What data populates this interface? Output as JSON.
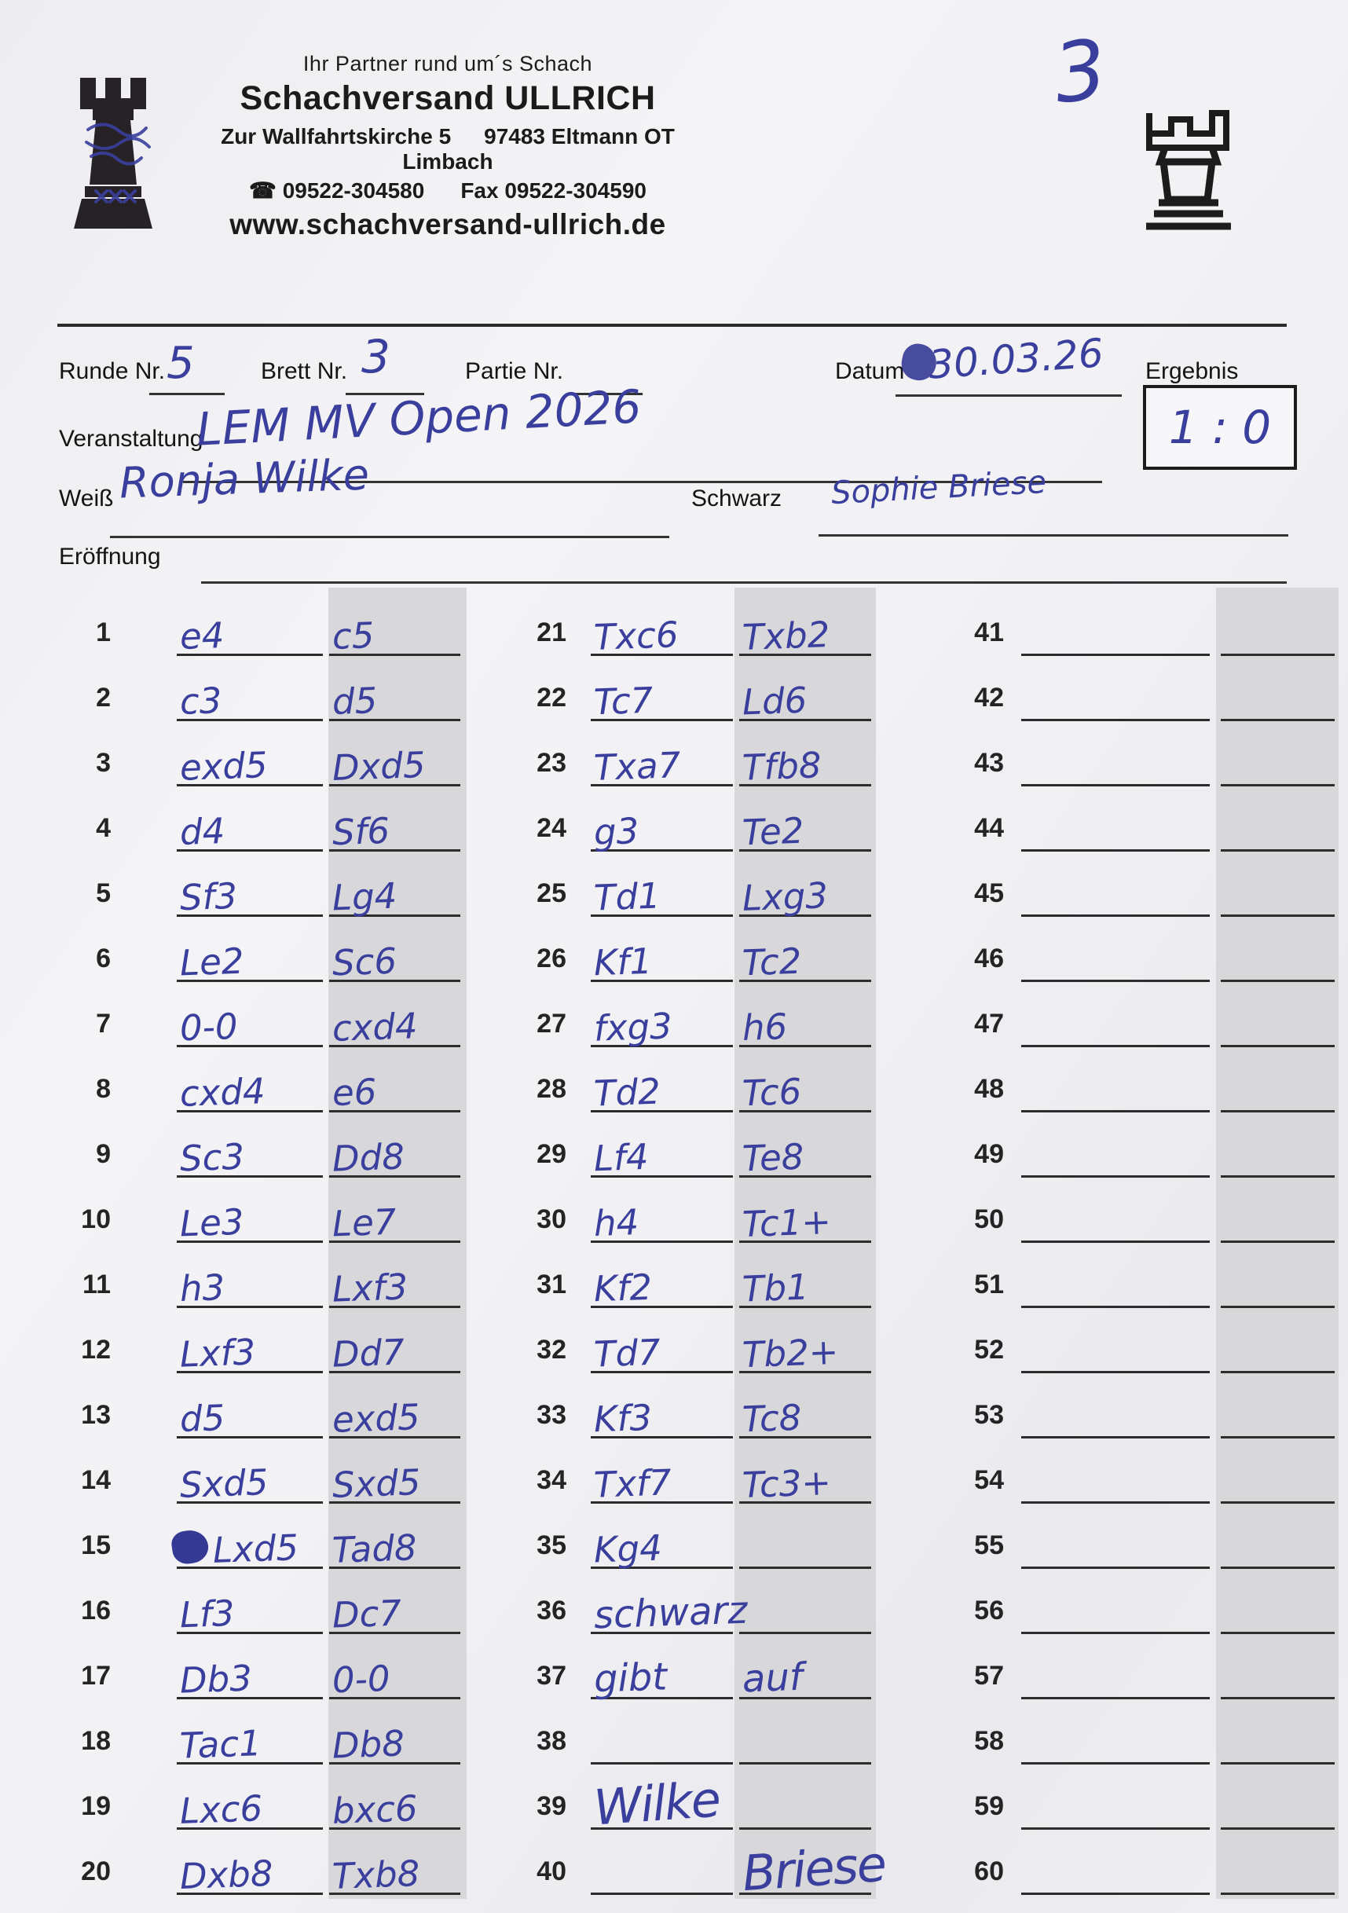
{
  "page": {
    "handwritten_page_number": "3"
  },
  "header": {
    "tagline": "Ihr Partner rund um´s Schach",
    "company": "Schachversand ULLRICH",
    "address_street": "Zur Wallfahrtskirche 5",
    "address_city": "97483 Eltmann OT Limbach",
    "phone_icon": "telephone-icon",
    "phone": "☎ 09522-304580",
    "fax": "Fax  09522-304590",
    "website": "www.schachversand-ullrich.de"
  },
  "meta": {
    "runde_label": "Runde Nr.",
    "runde_value": "5",
    "brett_label": "Brett Nr.",
    "brett_value": "3",
    "partie_label": "Partie Nr.",
    "partie_value": "",
    "datum_label": "Datum",
    "datum_value": "30.03.26",
    "ergebnis_label": "Ergebnis",
    "ergebnis_value": "1 : 0",
    "veranstaltung_label": "Veranstaltung",
    "veranstaltung_value": "LEM MV Open 2026",
    "weiss_label": "Weiß",
    "weiss_value": "Ronja Wilke",
    "schwarz_label": "Schwarz",
    "schwarz_value": "Sophie Briese",
    "eroeffnung_label": "Eröffnung",
    "eroeffnung_value": ""
  },
  "moves": [
    {
      "n": 1,
      "w": "e4",
      "b": "c5"
    },
    {
      "n": 2,
      "w": "c3",
      "b": "d5"
    },
    {
      "n": 3,
      "w": "exd5",
      "b": "Dxd5"
    },
    {
      "n": 4,
      "w": "d4",
      "b": "Sf6"
    },
    {
      "n": 5,
      "w": "Sf3",
      "b": "Lg4"
    },
    {
      "n": 6,
      "w": "Le2",
      "b": "Sc6"
    },
    {
      "n": 7,
      "w": "0-0",
      "b": "cxd4"
    },
    {
      "n": 8,
      "w": "cxd4",
      "b": "e6"
    },
    {
      "n": 9,
      "w": "Sc3",
      "b": "Dd8"
    },
    {
      "n": 10,
      "w": "Le3",
      "b": "Le7"
    },
    {
      "n": 11,
      "w": "h3",
      "b": "Lxf3"
    },
    {
      "n": 12,
      "w": "Lxf3",
      "b": "Dd7"
    },
    {
      "n": 13,
      "w": "d5",
      "b": "exd5"
    },
    {
      "n": 14,
      "w": "Sxd5",
      "b": "Sxd5"
    },
    {
      "n": 15,
      "w": "Lxd5",
      "b": "Tad8",
      "w_scribble": true
    },
    {
      "n": 16,
      "w": "Lf3",
      "b": "Dc7"
    },
    {
      "n": 17,
      "w": "Db3",
      "b": "0-0"
    },
    {
      "n": 18,
      "w": "Tac1",
      "b": "Db8"
    },
    {
      "n": 19,
      "w": "Lxc6",
      "b": "bxc6"
    },
    {
      "n": 20,
      "w": "Dxb8",
      "b": "Txb8"
    },
    {
      "n": 21,
      "w": "Txc6",
      "b": "Txb2"
    },
    {
      "n": 22,
      "w": "Tc7",
      "b": "Ld6"
    },
    {
      "n": 23,
      "w": "Txa7",
      "b": "Tfb8"
    },
    {
      "n": 24,
      "w": "g3",
      "b": "Te2"
    },
    {
      "n": 25,
      "w": "Td1",
      "b": "Lxg3"
    },
    {
      "n": 26,
      "w": "Kf1",
      "b": "Tc2"
    },
    {
      "n": 27,
      "w": "fxg3",
      "b": "h6"
    },
    {
      "n": 28,
      "w": "Td2",
      "b": "Tc6"
    },
    {
      "n": 29,
      "w": "Lf4",
      "b": "Te8"
    },
    {
      "n": 30,
      "w": "h4",
      "b": "Tc1+"
    },
    {
      "n": 31,
      "w": "Kf2",
      "b": "Tb1"
    },
    {
      "n": 32,
      "w": "Td7",
      "b": "Tb2+"
    },
    {
      "n": 33,
      "w": "Kf3",
      "b": "Tc8"
    },
    {
      "n": 34,
      "w": "Txf7",
      "b": "Tc3+"
    },
    {
      "n": 35,
      "w": "Kg4",
      "b": ""
    },
    {
      "n": 36,
      "w": "schwarz",
      "b": "",
      "w_kind": "note"
    },
    {
      "n": 37,
      "w": "gibt",
      "b": "auf",
      "w_kind": "note",
      "b_kind": "note"
    },
    {
      "n": 38,
      "w": "",
      "b": ""
    },
    {
      "n": 39,
      "w": "Wilke",
      "b": "",
      "w_kind": "sig"
    },
    {
      "n": 40,
      "w": "",
      "b": "Briese",
      "b_kind": "sig"
    },
    {
      "n": 41,
      "w": "",
      "b": ""
    },
    {
      "n": 42,
      "w": "",
      "b": ""
    },
    {
      "n": 43,
      "w": "",
      "b": ""
    },
    {
      "n": 44,
      "w": "",
      "b": ""
    },
    {
      "n": 45,
      "w": "",
      "b": ""
    },
    {
      "n": 46,
      "w": "",
      "b": ""
    },
    {
      "n": 47,
      "w": "",
      "b": ""
    },
    {
      "n": 48,
      "w": "",
      "b": ""
    },
    {
      "n": 49,
      "w": "",
      "b": ""
    },
    {
      "n": 50,
      "w": "",
      "b": ""
    },
    {
      "n": 51,
      "w": "",
      "b": ""
    },
    {
      "n": 52,
      "w": "",
      "b": ""
    },
    {
      "n": 53,
      "w": "",
      "b": ""
    },
    {
      "n": 54,
      "w": "",
      "b": ""
    },
    {
      "n": 55,
      "w": "",
      "b": ""
    },
    {
      "n": 56,
      "w": "",
      "b": ""
    },
    {
      "n": 57,
      "w": "",
      "b": ""
    },
    {
      "n": 58,
      "w": "",
      "b": ""
    },
    {
      "n": 59,
      "w": "",
      "b": ""
    },
    {
      "n": 60,
      "w": "",
      "b": ""
    }
  ]
}
